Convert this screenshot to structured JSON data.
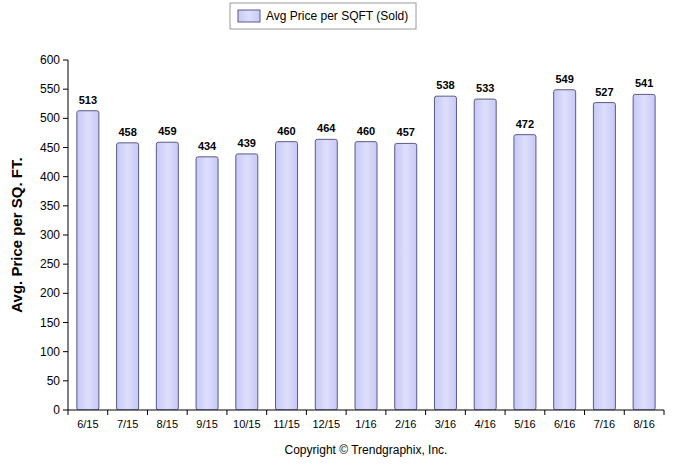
{
  "chart_data": {
    "type": "bar",
    "y_label": "Avg. Price per SQ. FT.",
    "source": "Copyright © Trendgraphix, Inc.",
    "categories": [
      "6/15",
      "7/15",
      "8/15",
      "9/15",
      "10/15",
      "11/15",
      "12/15",
      "1/16",
      "2/16",
      "3/16",
      "4/16",
      "5/16",
      "6/16",
      "7/16",
      "8/16"
    ],
    "series": [
      {
        "name": "Avg Price per SQFT (Sold)",
        "color": "#c8c8f6",
        "values": [
          513,
          458,
          459,
          434,
          439,
          460,
          464,
          460,
          457,
          538,
          533,
          472,
          549,
          527,
          541
        ]
      }
    ],
    "ylim": [
      0,
      600
    ],
    "yticks": [
      0,
      50,
      100,
      150,
      200,
      250,
      300,
      350,
      400,
      450,
      500,
      550,
      600
    ],
    "grid": false,
    "legend": "top",
    "data_labels": true
  }
}
